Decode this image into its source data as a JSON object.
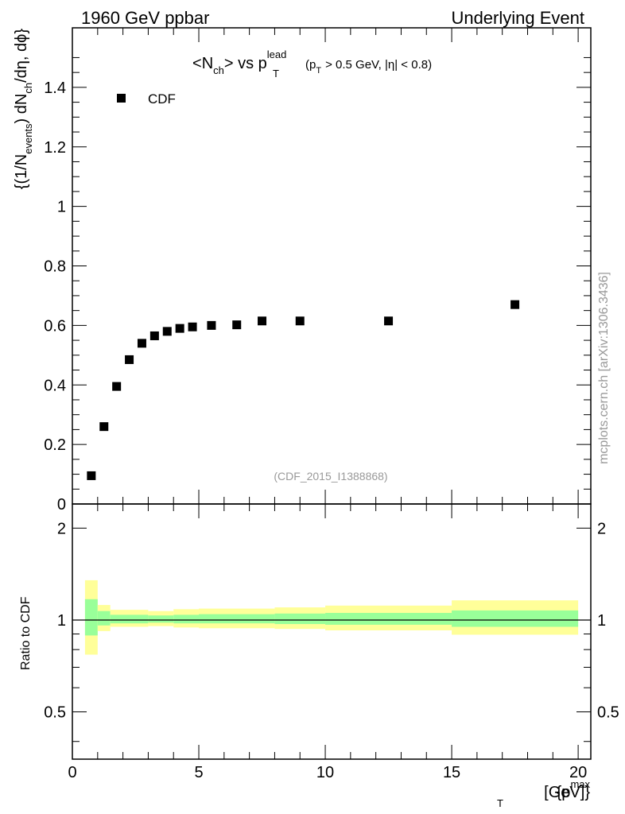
{
  "header": {
    "left": "1960 GeV ppbar",
    "right": "Underlying Event"
  },
  "title": {
    "lt": "<",
    "n": "N",
    "ch": "ch",
    "gt_vs": "> vs p",
    "lead": "lead",
    "T": "T",
    "cut_open": "(p",
    "cut_T": "T",
    "cut_rest": "> 0.5 GeV, |η| < 0.8)"
  },
  "ylabel": {
    "a": "{(1/N",
    "events": "events",
    "b": ") dN",
    "ch": "ch",
    "c": "/dη, dϕ}"
  },
  "ratio_ylabel": "Ratio to CDF",
  "xlabel": {
    "a": "{p",
    "max": "max",
    "T": "T",
    "b": " [GeV]}"
  },
  "legend": {
    "label": "CDF"
  },
  "analysis_id": "(CDF_2015_I1388868)",
  "watermark": "mcplots.cern.ch [arXiv:1306.3436]",
  "colors": {
    "marker": "#000000",
    "band_inner": "#99ff99",
    "band_outer": "#ffff99",
    "ratio_line": "#000000",
    "annotation": "#999999"
  },
  "chart_data": {
    "type": "scatter",
    "series": [
      {
        "name": "CDF",
        "x": [
          0.75,
          1.25,
          1.75,
          2.25,
          2.75,
          3.25,
          3.75,
          4.25,
          4.75,
          5.5,
          6.5,
          7.5,
          9.0,
          12.5,
          17.5
        ],
        "values": [
          0.095,
          0.26,
          0.395,
          0.485,
          0.54,
          0.565,
          0.58,
          0.59,
          0.595,
          0.6,
          0.602,
          0.615,
          0.615,
          0.615,
          0.67
        ]
      }
    ],
    "xlim": [
      0,
      20.5
    ],
    "ylim": [
      0,
      1.6
    ],
    "x_ticks": [
      "0",
      "5",
      "10",
      "15",
      "20"
    ],
    "y_ticks": [
      "0",
      "0.2",
      "0.4",
      "0.6",
      "0.8",
      "1",
      "1.2",
      "1.4"
    ],
    "ratio": {
      "ylim": [
        0.35,
        2.4
      ],
      "y_ticks": [
        "0.5",
        "1",
        "2"
      ],
      "bins": [
        {
          "lo": 0.5,
          "hi": 1.0,
          "inner": [
            0.89,
            1.17
          ],
          "outer": [
            0.77,
            1.35
          ]
        },
        {
          "lo": 1.0,
          "hi": 1.5,
          "inner": [
            0.96,
            1.07
          ],
          "outer": [
            0.92,
            1.12
          ]
        },
        {
          "lo": 1.5,
          "hi": 3.0,
          "inner": [
            0.975,
            1.04
          ],
          "outer": [
            0.95,
            1.08
          ]
        },
        {
          "lo": 3.0,
          "hi": 4.0,
          "inner": [
            0.98,
            1.035
          ],
          "outer": [
            0.955,
            1.07
          ]
        },
        {
          "lo": 4.0,
          "hi": 5.0,
          "inner": [
            0.975,
            1.04
          ],
          "outer": [
            0.945,
            1.085
          ]
        },
        {
          "lo": 5.0,
          "hi": 8.0,
          "inner": [
            0.975,
            1.045
          ],
          "outer": [
            0.94,
            1.09
          ]
        },
        {
          "lo": 8.0,
          "hi": 10.0,
          "inner": [
            0.97,
            1.05
          ],
          "outer": [
            0.935,
            1.1
          ]
        },
        {
          "lo": 10.0,
          "hi": 15.0,
          "inner": [
            0.965,
            1.055
          ],
          "outer": [
            0.925,
            1.115
          ]
        },
        {
          "lo": 15.0,
          "hi": 20.0,
          "inner": [
            0.95,
            1.075
          ],
          "outer": [
            0.895,
            1.16
          ]
        }
      ]
    }
  }
}
